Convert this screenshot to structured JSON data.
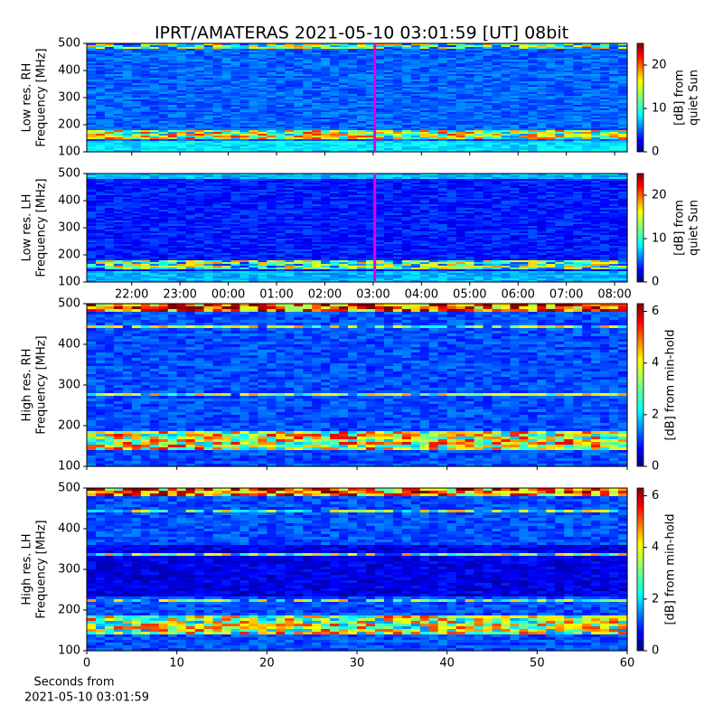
{
  "chart_data": [
    {
      "type": "heatmap",
      "title": "IPRT/AMATERAS 2021-05-10 03:01:59 [UT]   08bit",
      "ylabel": [
        "Low res. RH",
        "Frequency [MHz]"
      ],
      "ylim": [
        100,
        500
      ],
      "yticks": [
        100,
        200,
        300,
        400,
        500
      ],
      "xlim": [
        -2.93,
        8.26
      ],
      "xticks": [
        {
          "value": -2,
          "label": "22:00"
        },
        {
          "value": -1,
          "label": "23:00"
        },
        {
          "value": 0,
          "label": "00:00"
        },
        {
          "value": 1,
          "label": "01:00"
        },
        {
          "value": 2,
          "label": "02:00"
        },
        {
          "value": 3,
          "label": "03:00"
        },
        {
          "value": 4,
          "label": "04:00"
        },
        {
          "value": 5,
          "label": "05:00"
        },
        {
          "value": 6,
          "label": "06:00"
        },
        {
          "value": 7,
          "label": "07:00"
        },
        {
          "value": 8,
          "label": "08:00"
        }
      ],
      "show_xticklabels": false,
      "vline": 3.033,
      "vline_color": "#e000e0",
      "colorbar_label": [
        "[dB] from",
        "quiet Sun"
      ],
      "clim": [
        0,
        25
      ],
      "cticks": [
        0,
        10,
        20
      ]
    },
    {
      "type": "heatmap",
      "ylabel": [
        "Low res. LH",
        "Frequency [MHz]"
      ],
      "ylim": [
        100,
        500
      ],
      "yticks": [
        100,
        200,
        300,
        400,
        500
      ],
      "xlim": [
        -2.93,
        8.26
      ],
      "xticks": [
        {
          "value": -2,
          "label": "22:00"
        },
        {
          "value": -1,
          "label": "23:00"
        },
        {
          "value": 0,
          "label": "00:00"
        },
        {
          "value": 1,
          "label": "01:00"
        },
        {
          "value": 2,
          "label": "02:00"
        },
        {
          "value": 3,
          "label": "03:00"
        },
        {
          "value": 4,
          "label": "04:00"
        },
        {
          "value": 5,
          "label": "05:00"
        },
        {
          "value": 6,
          "label": "06:00"
        },
        {
          "value": 7,
          "label": "07:00"
        },
        {
          "value": 8,
          "label": "08:00"
        }
      ],
      "show_xticklabels": true,
      "vline": 3.033,
      "vline_color": "#e000e0",
      "colorbar_label": [
        "[dB] from",
        "quiet Sun"
      ],
      "clim": [
        0,
        25
      ],
      "cticks": [
        0,
        10,
        20
      ]
    },
    {
      "type": "heatmap",
      "ylabel": [
        "High res. RH",
        "Frequency [MHz]"
      ],
      "ylim": [
        100,
        500
      ],
      "yticks": [
        100,
        200,
        300,
        400,
        500
      ],
      "xlim": [
        0,
        60
      ],
      "xticks": [
        0,
        10,
        20,
        30,
        40,
        50,
        60
      ],
      "show_xticklabels": false,
      "colorbar_label": [
        "[dB] from min-hold"
      ],
      "clim": [
        0,
        6.3
      ],
      "cticks": [
        0,
        2,
        4,
        6
      ]
    },
    {
      "type": "heatmap",
      "ylabel": [
        "High res. LH",
        "Frequency [MHz]"
      ],
      "ylim": [
        100,
        500
      ],
      "yticks": [
        100,
        200,
        300,
        400,
        500
      ],
      "xlim": [
        0,
        60
      ],
      "xticks": [
        0,
        10,
        20,
        30,
        40,
        50,
        60
      ],
      "show_xticklabels": true,
      "xlabel": [
        "Seconds from",
        "2021-05-10 03:01:59"
      ],
      "colorbar_label": [
        "[dB] from min-hold"
      ],
      "clim": [
        0,
        6.3
      ],
      "cticks": [
        0,
        2,
        4,
        6
      ]
    }
  ]
}
